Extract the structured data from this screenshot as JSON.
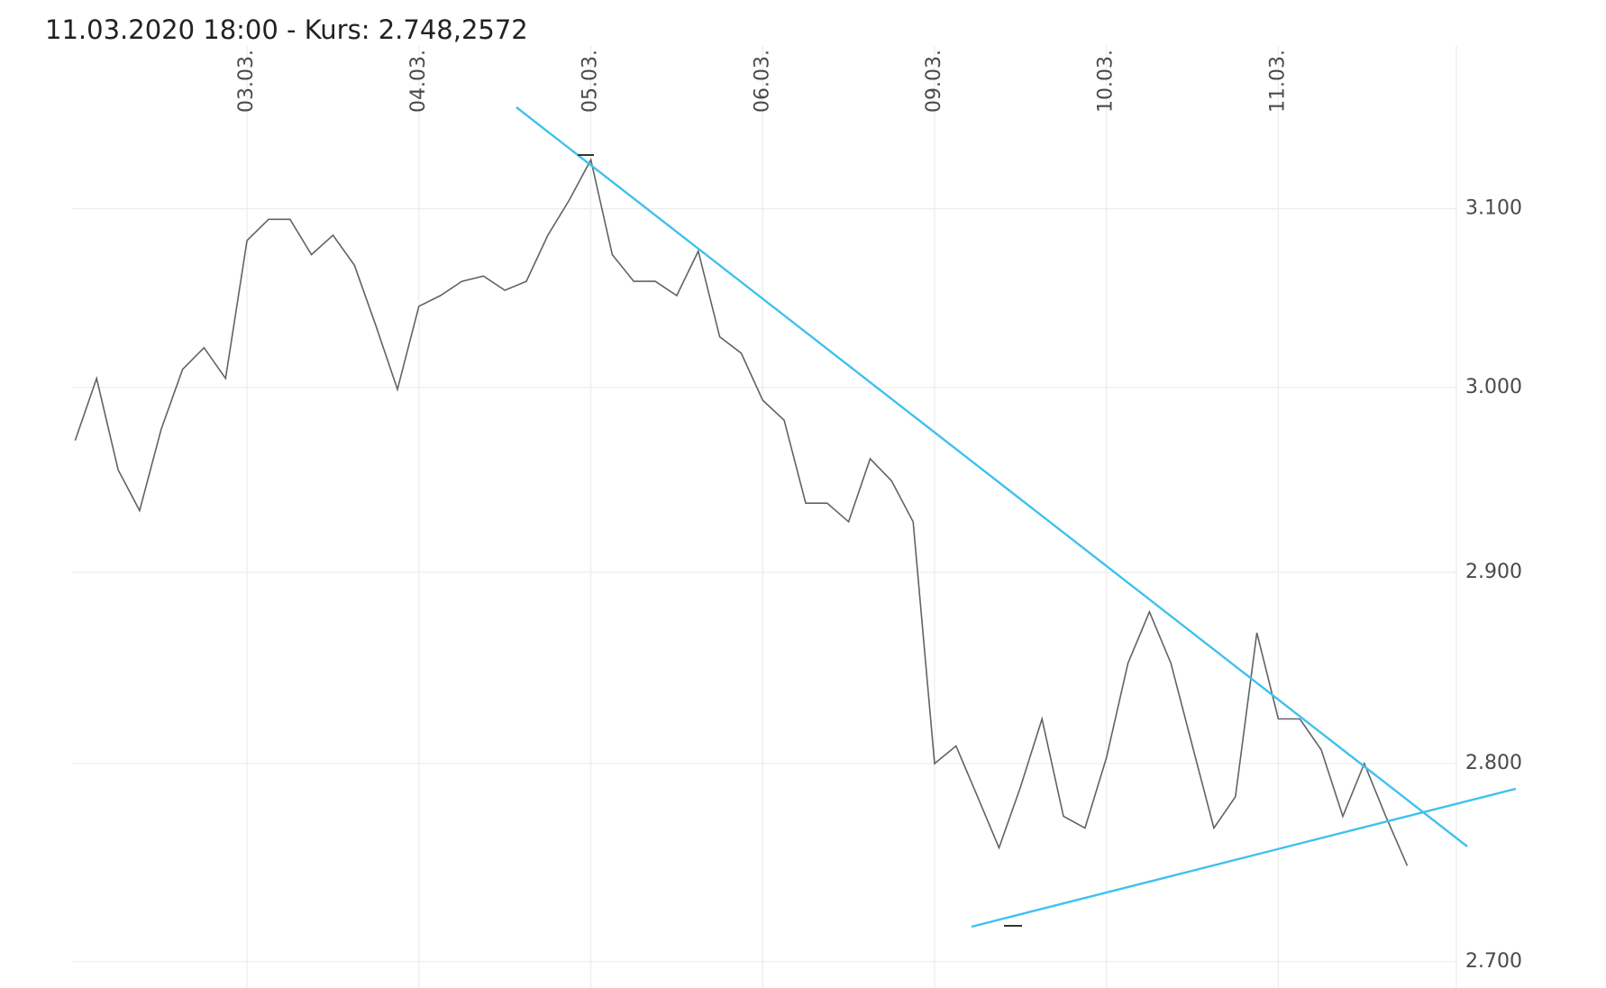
{
  "chart_data": {
    "type": "line",
    "title": "11.03.2020 18:00  -  Kurs: 2.748,2572",
    "categories": [
      null,
      null,
      null,
      null,
      null,
      null,
      null,
      null,
      "03.03.",
      null,
      null,
      null,
      null,
      null,
      null,
      null,
      "04.03.",
      null,
      null,
      null,
      null,
      null,
      null,
      null,
      "05.03.",
      null,
      null,
      null,
      null,
      null,
      null,
      null,
      "06.03.",
      null,
      null,
      null,
      null,
      null,
      null,
      null,
      "09.03.",
      null,
      null,
      null,
      null,
      null,
      null,
      null,
      "10.03.",
      null,
      null,
      null,
      null,
      null,
      null,
      null,
      "11.03.",
      null,
      null,
      null,
      null,
      null,
      null
    ],
    "values": [
      2971,
      3005,
      2955,
      2933,
      2977,
      3010,
      3022,
      3005,
      3082,
      3094,
      3094,
      3074,
      3085,
      3068,
      3034,
      2999,
      3045,
      3051,
      3059,
      3062,
      3054,
      3059,
      3085,
      3105,
      3128,
      3074,
      3059,
      3059,
      3051,
      3076,
      3028,
      3019,
      2993,
      2982,
      2937,
      2937,
      2927,
      2961,
      2949,
      2927,
      2800,
      2809,
      2783,
      2757,
      2788,
      2823,
      2773,
      2767,
      2803,
      2852,
      2879,
      2852,
      2809,
      2767,
      2783,
      2868,
      2823,
      2823,
      2807,
      2773,
      2800,
      2773,
      2748
    ],
    "color": "#5f6368",
    "ylim": [
      2687,
      3194
    ],
    "yticks": [
      {
        "value": 2700,
        "label": "2.700"
      },
      {
        "value": 2800,
        "label": "2.800"
      },
      {
        "value": 2900,
        "label": "2.900"
      },
      {
        "value": 3000,
        "label": "3.000"
      },
      {
        "value": 3100,
        "label": "3.100"
      }
    ],
    "log_scale": true,
    "grid": true
  }
}
